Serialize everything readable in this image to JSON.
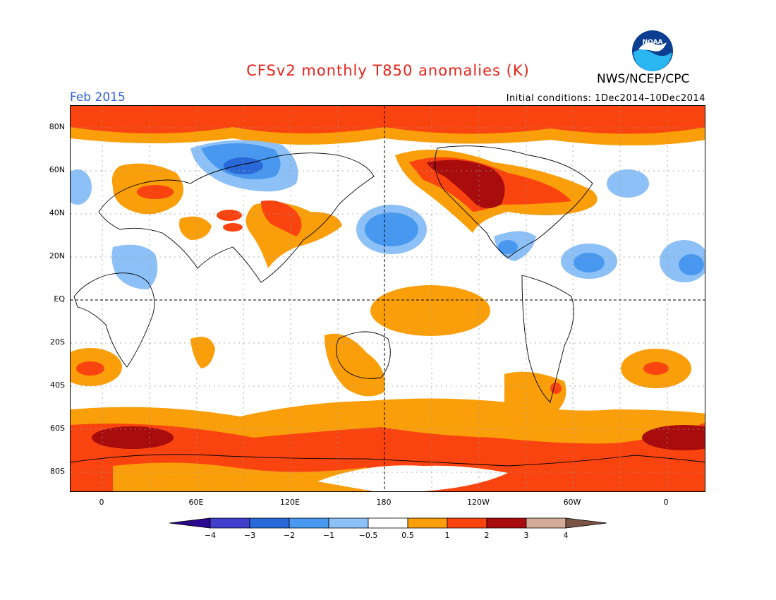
{
  "header": {
    "title": "CFSv2 monthly T850 anomalies (K)",
    "agency": "NWS/NCEP/CPC",
    "month": "Feb 2015",
    "initial_conditions": "Initial conditions: 1Dec2014–10Dec2014",
    "logo_text": "NOAA"
  },
  "colors": {
    "title": "#e8231a",
    "month": "#3060d8",
    "land_outline": "#000000",
    "grid": "#999999"
  },
  "axes": {
    "lat_labels": [
      "80N",
      "60N",
      "40N",
      "20N",
      "EQ",
      "20S",
      "40S",
      "60S",
      "80S"
    ],
    "lon_labels": [
      "0",
      "60E",
      "120E",
      "180",
      "120W",
      "60W",
      "0"
    ]
  },
  "colorbar": {
    "bins": [
      {
        "color": "#2a0890"
      },
      {
        "color": "#4040cc"
      },
      {
        "color": "#2868d8"
      },
      {
        "color": "#4898f0"
      },
      {
        "color": "#8cc0f6"
      },
      {
        "color": "#ffffff"
      },
      {
        "color": "#fa9e0a"
      },
      {
        "color": "#fa4410"
      },
      {
        "color": "#a80c0c"
      },
      {
        "color": "#d4aa98"
      },
      {
        "color": "#7a5444"
      }
    ],
    "labels": [
      "−4",
      "−3",
      "−2",
      "−1",
      "−0.5",
      "0.5",
      "1",
      "2",
      "3",
      "4"
    ]
  }
}
